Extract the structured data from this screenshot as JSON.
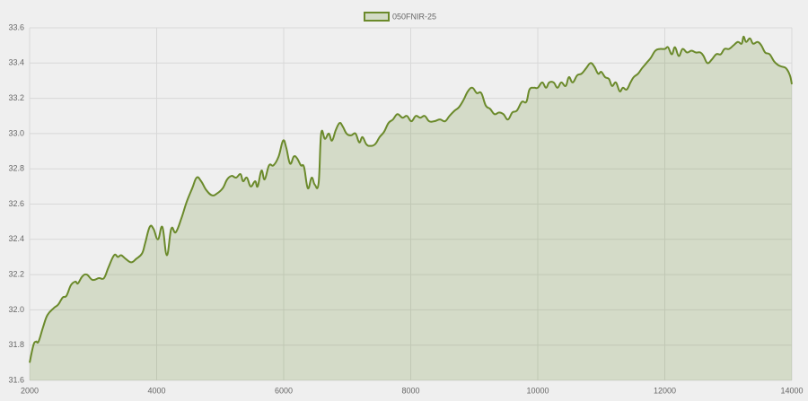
{
  "chart_data": {
    "type": "area",
    "x": [
      2000,
      2060,
      2100,
      2140,
      2210,
      2280,
      2380,
      2450,
      2520,
      2580,
      2650,
      2720,
      2760,
      2830,
      2900,
      2990,
      3090,
      3170,
      3240,
      3330,
      3390,
      3440,
      3510,
      3600,
      3680,
      3770,
      3820,
      3890,
      3950,
      4020,
      4090,
      4160,
      4230,
      4300,
      4390,
      4470,
      4560,
      4630,
      4700,
      4780,
      4870,
      4950,
      5040,
      5110,
      5180,
      5250,
      5320,
      5360,
      5420,
      5480,
      5550,
      5590,
      5650,
      5700,
      5770,
      5840,
      5920,
      5990,
      6040,
      6100,
      6160,
      6210,
      6270,
      6320,
      6380,
      6440,
      6490,
      6550,
      6590,
      6650,
      6710,
      6760,
      6820,
      6880,
      6930,
      6990,
      7060,
      7130,
      7190,
      7240,
      7300,
      7360,
      7440,
      7510,
      7580,
      7650,
      7720,
      7790,
      7870,
      7940,
      8010,
      8080,
      8150,
      8220,
      8290,
      8370,
      8460,
      8540,
      8610,
      8690,
      8760,
      8830,
      8900,
      8970,
      9040,
      9110,
      9180,
      9250,
      9320,
      9390,
      9460,
      9530,
      9600,
      9670,
      9750,
      9820,
      9870,
      9940,
      10000,
      10070,
      10130,
      10180,
      10250,
      10310,
      10370,
      10440,
      10490,
      10550,
      10620,
      10690,
      10760,
      10830,
      10890,
      10950,
      11000,
      11060,
      11120,
      11170,
      11230,
      11290,
      11340,
      11400,
      11460,
      11510,
      11580,
      11640,
      11710,
      11780,
      11850,
      11920,
      12000,
      12050,
      12110,
      12160,
      12220,
      12280,
      12350,
      12420,
      12490,
      12560,
      12610,
      12670,
      12740,
      12810,
      12880,
      12940,
      13010,
      13080,
      13150,
      13210,
      13240,
      13280,
      13340,
      13390,
      13460,
      13520,
      13580,
      13650,
      13720,
      13780,
      13840,
      13910,
      13970,
      14000
    ],
    "series": [
      {
        "name": "050FNIR-25",
        "color": "#6b8a2b",
        "values": [
          31.7,
          31.8,
          31.82,
          31.82,
          31.9,
          31.97,
          32.01,
          32.03,
          32.07,
          32.08,
          32.14,
          32.16,
          32.15,
          32.19,
          32.2,
          32.17,
          32.18,
          32.18,
          32.24,
          32.31,
          32.3,
          32.31,
          32.29,
          32.27,
          32.29,
          32.32,
          32.38,
          32.47,
          32.46,
          32.4,
          32.47,
          32.31,
          32.46,
          32.44,
          32.52,
          32.61,
          32.69,
          32.75,
          32.73,
          32.68,
          32.65,
          32.66,
          32.69,
          32.74,
          32.76,
          32.75,
          32.77,
          32.73,
          32.75,
          32.7,
          32.73,
          32.7,
          32.79,
          32.74,
          32.82,
          32.82,
          32.87,
          32.96,
          32.92,
          32.83,
          32.87,
          32.86,
          32.82,
          32.81,
          32.69,
          32.75,
          32.71,
          32.72,
          33.0,
          32.97,
          33.0,
          32.96,
          33.02,
          33.06,
          33.04,
          33.0,
          32.99,
          33.0,
          32.95,
          32.98,
          32.94,
          32.93,
          32.94,
          32.98,
          33.01,
          33.06,
          33.08,
          33.11,
          33.09,
          33.1,
          33.07,
          33.1,
          33.09,
          33.1,
          33.07,
          33.07,
          33.08,
          33.07,
          33.1,
          33.13,
          33.15,
          33.19,
          33.24,
          33.26,
          33.23,
          33.23,
          33.16,
          33.14,
          33.11,
          33.12,
          33.11,
          33.08,
          33.12,
          33.13,
          33.18,
          33.18,
          33.25,
          33.26,
          33.26,
          33.29,
          33.26,
          33.29,
          33.29,
          33.26,
          33.29,
          33.27,
          33.32,
          33.29,
          33.33,
          33.34,
          33.37,
          33.4,
          33.38,
          33.34,
          33.35,
          33.32,
          33.31,
          33.27,
          33.29,
          33.24,
          33.26,
          33.25,
          33.29,
          33.32,
          33.34,
          33.37,
          33.4,
          33.43,
          33.47,
          33.48,
          33.48,
          33.49,
          33.45,
          33.49,
          33.44,
          33.48,
          33.46,
          33.47,
          33.46,
          33.46,
          33.44,
          33.4,
          33.42,
          33.45,
          33.45,
          33.48,
          33.48,
          33.5,
          33.52,
          33.51,
          33.55,
          33.52,
          33.54,
          33.51,
          33.52,
          33.5,
          33.46,
          33.45,
          33.41,
          33.39,
          33.38,
          33.37,
          33.33,
          33.28
        ]
      }
    ],
    "xlim": [
      2000,
      14000
    ],
    "xticks": [
      2000,
      4000,
      6000,
      8000,
      10000,
      12000,
      14000
    ],
    "ylim": [
      31.6,
      33.6
    ],
    "yticks": [
      31.6,
      31.8,
      {
        "value": 32,
        "label": "32.0"
      },
      32.2,
      32.4,
      32.6,
      32.8,
      {
        "value": 33,
        "label": "33.0"
      },
      33.2,
      33.4,
      33.6
    ],
    "grid": true,
    "legend": "top"
  }
}
